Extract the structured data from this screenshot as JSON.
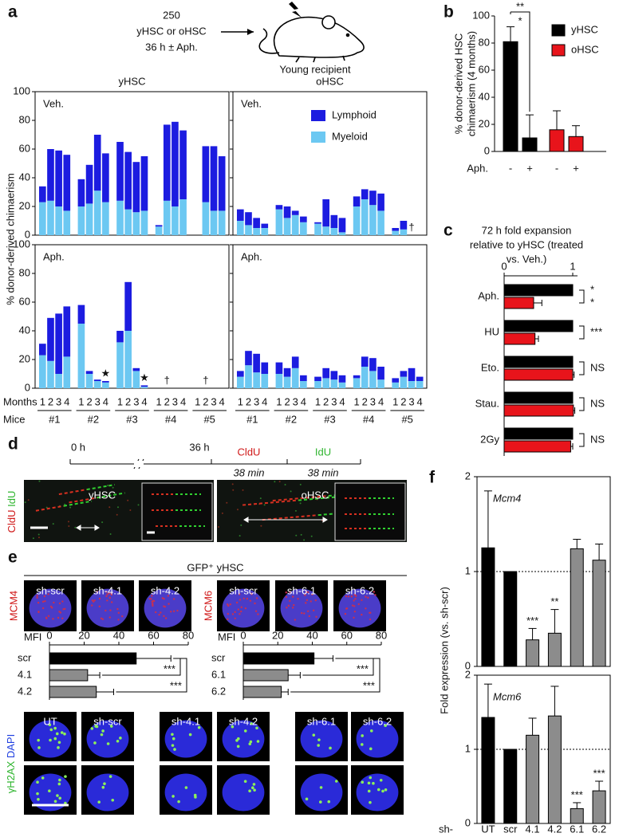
{
  "panel_labels": [
    "a",
    "b",
    "c",
    "d",
    "e",
    "f"
  ],
  "schematic": {
    "lines": [
      "250",
      "yHSC or oHSC",
      "36 h ± Aph."
    ],
    "recipient": "Young recipient"
  },
  "chart_data": [
    {
      "type": "stacked_panels",
      "column_titles": [
        "yHSC",
        "oHSC"
      ],
      "row_labels": [
        "Veh.",
        "Aph."
      ],
      "ylabel": "% donor-derived chimaerism",
      "xlabel": "Months",
      "group_label": "Mice",
      "categories": [
        "1",
        "2",
        "3",
        "4",
        "1",
        "2",
        "3",
        "4",
        "1",
        "2",
        "3",
        "4",
        "1",
        "2",
        "3",
        "4",
        "1",
        "2",
        "3",
        "4"
      ],
      "groups": [
        "#1",
        "#2",
        "#3",
        "#4",
        "#5"
      ],
      "series": [
        {
          "name": "Myeloid",
          "color": "#6cc8f2",
          "values": [
            [
              23,
              24,
              20,
              17,
              20,
              22,
              31,
              23,
              24,
              18,
              16,
              17,
              6,
              24,
              20,
              25,
              null,
              23,
              17,
              17
            ],
            [
              10,
              7,
              5,
              5,
              18,
              12,
              14,
              9,
              8,
              6,
              5,
              2,
              20,
              25,
              21,
              17,
              3,
              4,
              null,
              null
            ],
            [
              23,
              19,
              10,
              22,
              45,
              10,
              5,
              4,
              32,
              40,
              12,
              1,
              null,
              null,
              null,
              null,
              null,
              null,
              null,
              null
            ],
            [
              8,
              16,
              11,
              10,
              10,
              8,
              14,
              5,
              5,
              7,
              6,
              4,
              7,
              15,
              12,
              6,
              4,
              8,
              5,
              5
            ]
          ]
        },
        {
          "name": "Lymphoid",
          "color": "#1c1ce0",
          "values": [
            [
              11,
              36,
              39,
              39,
              19,
              27,
              39,
              34,
              41,
              40,
              35,
              38,
              1,
              53,
              59,
              48,
              null,
              39,
              45,
              38
            ],
            [
              8,
              9,
              7,
              3,
              3,
              8,
              3,
              4,
              1,
              19,
              9,
              10,
              7,
              7,
              10,
              12,
              2,
              6,
              null,
              null
            ],
            [
              8,
              30,
              42,
              35,
              13,
              2,
              1,
              1,
              8,
              34,
              2,
              1,
              null,
              null,
              null,
              null,
              null,
              null,
              null,
              null
            ],
            [
              4,
              10,
              13,
              8,
              8,
              6,
              8,
              4,
              3,
              7,
              6,
              5,
              2,
              7,
              9,
              9,
              3,
              4,
              9,
              3
            ]
          ]
        }
      ],
      "markers": [
        [
          null,
          null,
          null,
          null,
          null,
          null,
          null,
          null,
          null,
          null,
          null,
          null,
          null,
          null,
          null,
          null,
          null,
          null,
          null,
          null
        ],
        [
          null,
          null,
          null,
          null,
          null,
          null,
          null,
          null,
          null,
          null,
          null,
          null,
          null,
          null,
          null,
          null,
          null,
          null,
          "†",
          null
        ],
        [
          null,
          null,
          null,
          null,
          null,
          null,
          null,
          "★",
          null,
          null,
          null,
          "★",
          null,
          "†",
          null,
          null,
          null,
          "†",
          null,
          null
        ],
        [
          null,
          null,
          null,
          null,
          null,
          null,
          null,
          null,
          null,
          null,
          null,
          null,
          null,
          null,
          null,
          null,
          null,
          null,
          null,
          null
        ]
      ],
      "ylim": [
        0,
        100
      ],
      "yticks": [
        0,
        20,
        40,
        60,
        80,
        100
      ],
      "legend": "upper right"
    },
    {
      "type": "grouped_bar",
      "ylabel": [
        "% donor-derived HSC",
        "chimaerism (4 months)"
      ],
      "xlabel": "Aph.",
      "categories": [
        "-",
        "+"
      ],
      "series": [
        {
          "name": "yHSC",
          "color": "#000000",
          "values": [
            81,
            10
          ],
          "errors": [
            11,
            17
          ]
        },
        {
          "name": "oHSC",
          "color": "#e8141b",
          "values": [
            16,
            11
          ],
          "errors": [
            14,
            8
          ]
        }
      ],
      "ylim": [
        0,
        100
      ],
      "yticks": [
        0,
        20,
        40,
        60,
        80,
        100
      ],
      "significance": [
        "**",
        "*"
      ],
      "legend": "upper right"
    },
    {
      "type": "paired_hbar",
      "title": [
        "72 h fold expansion",
        "relative to yHSC (treated",
        "vs. Veh.)"
      ],
      "categories": [
        "Aph.",
        "HU",
        "Eto.",
        "Stau.",
        "2Gy"
      ],
      "series": [
        {
          "color": "#000000",
          "values": [
            1,
            1,
            1,
            1,
            1
          ]
        },
        {
          "color": "#e8141b",
          "values": [
            0.43,
            0.45,
            1,
            1.01,
            0.97
          ],
          "errors": [
            0.12,
            0.05,
            0.02,
            0.02,
            0.03
          ]
        }
      ],
      "xlim": [
        0,
        1
      ],
      "xticks": [
        0,
        1
      ],
      "significance": [
        [
          "*",
          "*"
        ],
        [
          "***"
        ],
        [
          "NS"
        ],
        [
          "NS"
        ],
        [
          "NS"
        ]
      ]
    },
    {
      "type": "hbar",
      "xlabel": "MFI",
      "categories": [
        "scr",
        "4.1",
        "4.2"
      ],
      "values": [
        50,
        22,
        27
      ],
      "errors": [
        20,
        7,
        10
      ],
      "colors": [
        "#000000",
        "#8c8c8c",
        "#8c8c8c"
      ],
      "xlim": [
        0,
        80
      ],
      "xticks": [
        0,
        20,
        40,
        60,
        80
      ],
      "significance": [
        "***",
        "***"
      ]
    },
    {
      "type": "hbar",
      "xlabel": "MFI",
      "categories": [
        "scr",
        "6.1",
        "6.2"
      ],
      "values": [
        41,
        26,
        22
      ],
      "errors": [
        11,
        7,
        4
      ],
      "colors": [
        "#000000",
        "#8c8c8c",
        "#8c8c8c"
      ],
      "xlim": [
        0,
        80
      ],
      "xticks": [
        0,
        20,
        40,
        60,
        80
      ],
      "significance": [
        "***",
        "***"
      ]
    },
    {
      "type": "bar",
      "title": "Mcm4",
      "ylabel": "Fold expression (vs. sh-scr)",
      "values": [
        1.25,
        1,
        0.28,
        0.35,
        1.24,
        1.12
      ],
      "errors": [
        0.6,
        null,
        0.12,
        0.25,
        0.1,
        0.17
      ],
      "colors": [
        "#000000",
        "#000000",
        "#8c8c8c",
        "#8c8c8c",
        "#8c8c8c",
        "#8c8c8c"
      ],
      "ylim": [
        0,
        2
      ],
      "yticks": [
        0,
        1,
        2
      ],
      "reference_line": 1,
      "significance": [
        null,
        null,
        "***",
        "**",
        null,
        null
      ]
    },
    {
      "type": "bar",
      "title": "Mcm6",
      "xlabel": "sh-",
      "categories": [
        "UT",
        "scr",
        "4.1",
        "4.2",
        "6.1",
        "6.2"
      ],
      "values": [
        1.43,
        1,
        1.19,
        1.45,
        0.2,
        0.44
      ],
      "errors": [
        0.45,
        null,
        0.23,
        0.4,
        0.08,
        0.13
      ],
      "colors": [
        "#000000",
        "#000000",
        "#8c8c8c",
        "#8c8c8c",
        "#8c8c8c",
        "#8c8c8c"
      ],
      "ylim": [
        0,
        2
      ],
      "yticks": [
        0,
        1,
        2
      ],
      "reference_line": 1,
      "significance": [
        null,
        null,
        null,
        null,
        "***",
        "***"
      ]
    }
  ],
  "panel_d": {
    "timeline": {
      "start": "0 h",
      "end": "36 h",
      "pulses": [
        {
          "label": "CldU",
          "duration": "38 min"
        },
        {
          "label": "IdU",
          "duration": "38 min"
        }
      ]
    },
    "stains": [
      "CldU",
      "IdU"
    ],
    "image_labels": [
      "yHSC",
      "oHSC"
    ]
  },
  "panel_e": {
    "title": "GFP⁺ yHSC",
    "stains": [
      "MCM4",
      "MCM6"
    ],
    "image_labels": [
      [
        "sh-scr",
        "sh-4.1",
        "sh-4.2"
      ],
      [
        "sh-scr",
        "sh-6.1",
        "sh-6.2"
      ]
    ],
    "foci_labels": [
      "UT",
      "sh-scr",
      "sh-4.1",
      "sh-4.2",
      "sh-6.1",
      "sh-6.2"
    ],
    "foci_stains": [
      "γH2AX",
      "DAPI"
    ]
  }
}
